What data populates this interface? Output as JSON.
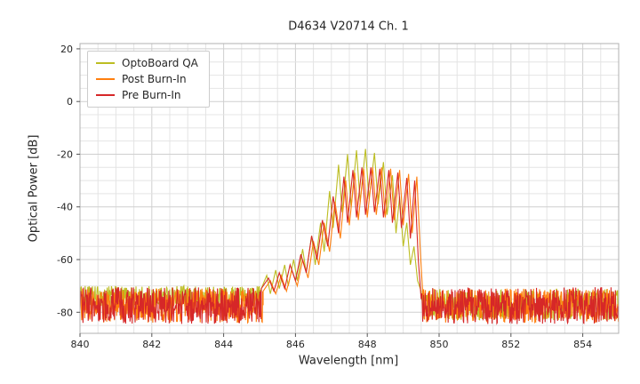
{
  "window": {
    "title": "D4634 V20714 Ch. 1"
  },
  "colors": {
    "optoboard_qa": "#bcbd22",
    "post_burn_in": "#ff7f0e",
    "pre_burn_in": "#d62728",
    "grid_major": "#cfcfcf",
    "grid_minor": "#e4e4e4",
    "axis_border": "#b0b0b0",
    "text": "#262626"
  },
  "chart_data": {
    "type": "line",
    "title": "D4634 V20714 Ch. 1",
    "xlabel": "Wavelength [nm]",
    "ylabel": "Optical Power [dB]",
    "xlim": [
      840,
      855
    ],
    "ylim": [
      -88,
      22
    ],
    "xticks": [
      840,
      842,
      844,
      846,
      848,
      850,
      852,
      854
    ],
    "yticks": [
      20,
      0,
      -20,
      -40,
      -60,
      -80
    ],
    "grid": {
      "on": true,
      "major_x": 2,
      "minor_x": 0.5,
      "major_y": 20,
      "minor_y": 5
    },
    "legend_position": "upper left",
    "series": [
      {
        "name": "OptoBoard QA",
        "color": "#bcbd22",
        "noise_floor_db": -74.5,
        "noise": [
          {
            "from": 840,
            "to": 845.05,
            "floor": -74.5,
            "amp": 4.5
          },
          {
            "from": 849.52,
            "to": 855,
            "floor": -77,
            "amp": 6
          }
        ],
        "signal": [
          [
            845.05,
            -71
          ],
          [
            845.2,
            -66
          ],
          [
            845.3,
            -73
          ],
          [
            845.45,
            -64
          ],
          [
            845.55,
            -71
          ],
          [
            845.7,
            -62
          ],
          [
            845.8,
            -70
          ],
          [
            845.95,
            -60
          ],
          [
            846.05,
            -68
          ],
          [
            846.2,
            -56
          ],
          [
            846.3,
            -65
          ],
          [
            846.45,
            -51
          ],
          [
            846.55,
            -62
          ],
          [
            846.7,
            -46
          ],
          [
            846.8,
            -57
          ],
          [
            846.95,
            -34
          ],
          [
            847.05,
            -48
          ],
          [
            847.2,
            -24
          ],
          [
            847.3,
            -42
          ],
          [
            847.45,
            -20
          ],
          [
            847.55,
            -40
          ],
          [
            847.7,
            -18.5
          ],
          [
            847.8,
            -38
          ],
          [
            847.95,
            -18
          ],
          [
            848.05,
            -37
          ],
          [
            848.2,
            -19.5
          ],
          [
            848.3,
            -39
          ],
          [
            848.45,
            -23
          ],
          [
            848.55,
            -43
          ],
          [
            848.7,
            -28
          ],
          [
            848.8,
            -50
          ],
          [
            848.9,
            -36
          ],
          [
            849.0,
            -55
          ],
          [
            849.1,
            -46
          ],
          [
            849.2,
            -62
          ],
          [
            849.3,
            -55
          ],
          [
            849.4,
            -68
          ],
          [
            849.5,
            -72
          ]
        ]
      },
      {
        "name": "Post Burn-In",
        "color": "#ff7f0e",
        "noise_floor_db": -77.5,
        "noise": [
          {
            "from": 840,
            "to": 845.1,
            "floor": -77.5,
            "amp": 6.5
          },
          {
            "from": 849.57,
            "to": 855,
            "floor": -77.5,
            "amp": 6.5
          }
        ],
        "signal": [
          [
            845.1,
            -72
          ],
          [
            845.3,
            -68
          ],
          [
            845.45,
            -73
          ],
          [
            845.6,
            -66
          ],
          [
            845.75,
            -72
          ],
          [
            845.9,
            -64
          ],
          [
            846.05,
            -70
          ],
          [
            846.2,
            -60
          ],
          [
            846.35,
            -67
          ],
          [
            846.5,
            -53
          ],
          [
            846.65,
            -62
          ],
          [
            846.8,
            -46
          ],
          [
            846.95,
            -57
          ],
          [
            847.1,
            -38
          ],
          [
            847.25,
            -52
          ],
          [
            847.4,
            -30
          ],
          [
            847.5,
            -47
          ],
          [
            847.65,
            -27
          ],
          [
            847.75,
            -45
          ],
          [
            847.9,
            -25.5
          ],
          [
            848.0,
            -44
          ],
          [
            848.15,
            -25
          ],
          [
            848.25,
            -43
          ],
          [
            848.4,
            -25
          ],
          [
            848.5,
            -44
          ],
          [
            848.65,
            -25.5
          ],
          [
            848.75,
            -45
          ],
          [
            848.9,
            -26
          ],
          [
            849.0,
            -47
          ],
          [
            849.15,
            -27.5
          ],
          [
            849.25,
            -50
          ],
          [
            849.38,
            -28.5
          ],
          [
            849.48,
            -58
          ],
          [
            849.55,
            -74
          ]
        ]
      },
      {
        "name": "Pre Burn-In",
        "color": "#d62728",
        "noise_floor_db": -77.5,
        "noise": [
          {
            "from": 840,
            "to": 845.05,
            "floor": -77.5,
            "amp": 7
          },
          {
            "from": 849.52,
            "to": 855,
            "floor": -77.5,
            "amp": 7
          }
        ],
        "signal": [
          [
            845.05,
            -71
          ],
          [
            845.25,
            -67
          ],
          [
            845.4,
            -72
          ],
          [
            845.55,
            -65
          ],
          [
            845.7,
            -71
          ],
          [
            845.85,
            -62
          ],
          [
            846.0,
            -68
          ],
          [
            846.15,
            -58
          ],
          [
            846.3,
            -65
          ],
          [
            846.45,
            -51
          ],
          [
            846.6,
            -60
          ],
          [
            846.75,
            -45
          ],
          [
            846.9,
            -55
          ],
          [
            847.05,
            -36
          ],
          [
            847.2,
            -50
          ],
          [
            847.35,
            -28.5
          ],
          [
            847.45,
            -46
          ],
          [
            847.6,
            -26
          ],
          [
            847.7,
            -44
          ],
          [
            847.85,
            -25
          ],
          [
            847.95,
            -43
          ],
          [
            848.1,
            -25
          ],
          [
            848.2,
            -42
          ],
          [
            848.35,
            -25.5
          ],
          [
            848.45,
            -44
          ],
          [
            848.6,
            -26
          ],
          [
            848.7,
            -46
          ],
          [
            848.85,
            -27
          ],
          [
            848.95,
            -48
          ],
          [
            849.1,
            -29
          ],
          [
            849.2,
            -52
          ],
          [
            849.32,
            -30
          ],
          [
            849.42,
            -60
          ],
          [
            849.5,
            -75
          ]
        ]
      }
    ]
  }
}
